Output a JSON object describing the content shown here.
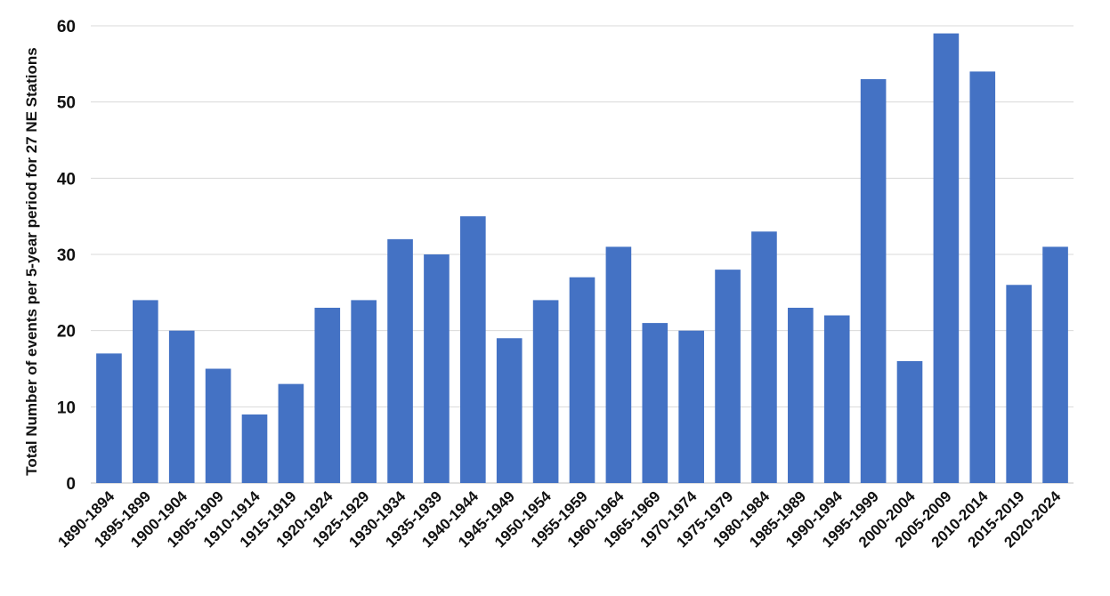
{
  "chart_data": {
    "type": "bar",
    "title": "",
    "xlabel": "",
    "ylabel": "Total Number of events per 5-year period for 27 NE Stations",
    "ylim": [
      0,
      60
    ],
    "yticks": [
      0,
      10,
      20,
      30,
      40,
      50,
      60
    ],
    "grid": true,
    "bar_color": "#4472C4",
    "categories": [
      "1890-1894",
      "1895-1899",
      "1900-1904",
      "1905-1909",
      "1910-1914",
      "1915-1919",
      "1920-1924",
      "1925-1929",
      "1930-1934",
      "1935-1939",
      "1940-1944",
      "1945-1949",
      "1950-1954",
      "1955-1959",
      "1960-1964",
      "1965-1969",
      "1970-1974",
      "1975-1979",
      "1980-1984",
      "1985-1989",
      "1990-1994",
      "1995-1999",
      "2000-2004",
      "2005-2009",
      "2010-2014",
      "2015-2019",
      "2020-2024"
    ],
    "values": [
      17,
      24,
      20,
      15,
      9,
      13,
      23,
      24,
      32,
      30,
      35,
      19,
      24,
      27,
      31,
      21,
      20,
      28,
      33,
      23,
      22,
      53,
      16,
      59,
      54,
      26,
      31
    ]
  }
}
